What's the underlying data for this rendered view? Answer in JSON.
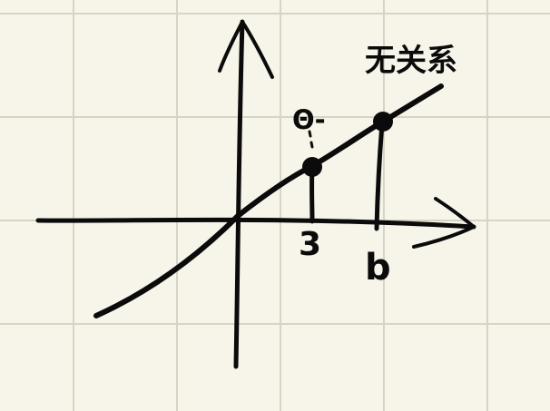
{
  "colors": {
    "paper": "#f7f5ea",
    "grid": "#d6d4c4",
    "ink": "#0b0b0b"
  },
  "handwritten_labels": {
    "top_right": "无关系",
    "top_left_point": "Θ-",
    "x_mark_1": "3",
    "x_mark_2": "b"
  }
}
